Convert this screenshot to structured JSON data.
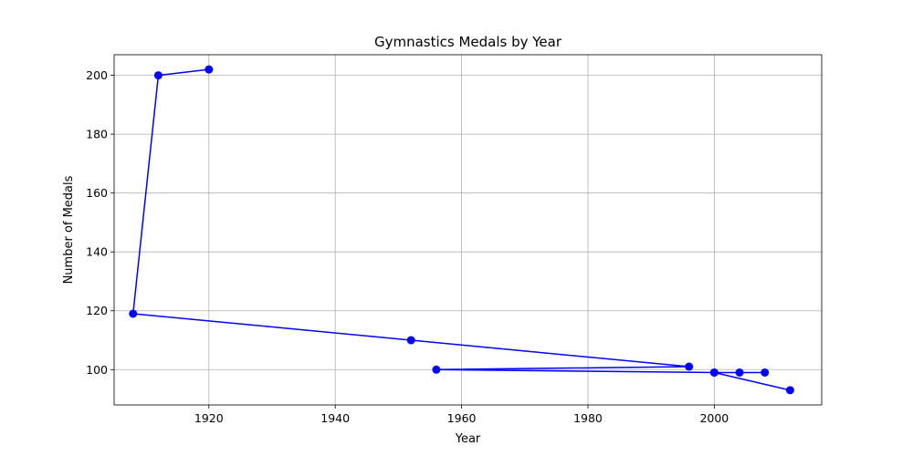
{
  "chart_data": {
    "type": "line",
    "title": "Gymnastics Medals by Year",
    "xlabel": "Year",
    "ylabel": "Number of Medals",
    "xlim": [
      1905,
      2017
    ],
    "ylim": [
      88,
      207
    ],
    "xticks": [
      1920,
      1940,
      1960,
      1980,
      2000
    ],
    "yticks": [
      100,
      120,
      140,
      160,
      180,
      200
    ],
    "grid": true,
    "legend": "none",
    "series": [
      {
        "color": "#0000ff",
        "marker": "circle",
        "x": [
          1920,
          1912,
          1908,
          1952,
          1996,
          1956,
          2000,
          2004,
          2008,
          2000,
          2012
        ],
        "y": [
          202,
          200,
          119,
          110,
          101,
          100,
          99,
          99,
          99,
          99,
          93
        ]
      }
    ]
  }
}
